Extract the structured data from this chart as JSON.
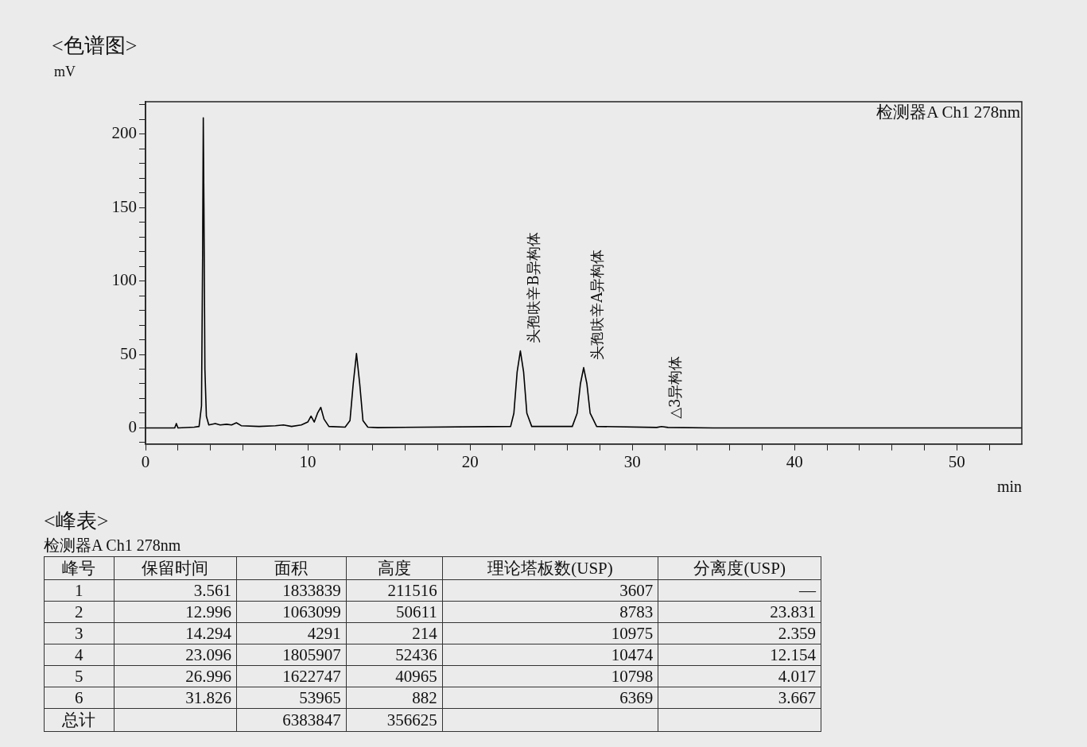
{
  "chart_data": {
    "type": "line",
    "title": "<色谱图>",
    "ylabel": "mV",
    "xlabel": "min",
    "color": "#000000",
    "marker": "none",
    "line_style": "solid",
    "grid": false,
    "legend": false,
    "xlim": [
      0,
      54
    ],
    "ylim": [
      -11,
      222
    ],
    "xticks": [
      0,
      {
        "value": 2,
        "label": null
      },
      {
        "value": 4,
        "label": null
      },
      {
        "value": 6,
        "label": null
      },
      {
        "value": 8,
        "label": null
      },
      10,
      {
        "value": 12,
        "label": null
      },
      {
        "value": 14,
        "label": null
      },
      {
        "value": 16,
        "label": null
      },
      {
        "value": 18,
        "label": null
      },
      20,
      {
        "value": 22,
        "label": null
      },
      {
        "value": 24,
        "label": null
      },
      {
        "value": 26,
        "label": null
      },
      {
        "value": 28,
        "label": null
      },
      30,
      {
        "value": 32,
        "label": null
      },
      {
        "value": 34,
        "label": null
      },
      {
        "value": 36,
        "label": null
      },
      {
        "value": 38,
        "label": null
      },
      40,
      {
        "value": 42,
        "label": null
      },
      {
        "value": 44,
        "label": null
      },
      {
        "value": 46,
        "label": null
      },
      {
        "value": 48,
        "label": null
      },
      50,
      {
        "value": 52,
        "label": null
      }
    ],
    "yticks": [
      {
        "value": -10,
        "label": null
      },
      0,
      {
        "value": 10,
        "label": null
      },
      {
        "value": 20,
        "label": null
      },
      {
        "value": 30,
        "label": null
      },
      {
        "value": 40,
        "label": null
      },
      50,
      {
        "value": 60,
        "label": null
      },
      {
        "value": 70,
        "label": null
      },
      {
        "value": 80,
        "label": null
      },
      {
        "value": 90,
        "label": null
      },
      100,
      {
        "value": 110,
        "label": null
      },
      {
        "value": 120,
        "label": null
      },
      {
        "value": 130,
        "label": null
      },
      {
        "value": 140,
        "label": null
      },
      150,
      {
        "value": 160,
        "label": null
      },
      {
        "value": 170,
        "label": null
      },
      {
        "value": 180,
        "label": null
      },
      {
        "value": 190,
        "label": null
      },
      200,
      {
        "value": 210,
        "label": null
      },
      {
        "value": 220,
        "label": null
      }
    ],
    "x": [
      0,
      1.8,
      1.9,
      2.0,
      3.0,
      3.3,
      3.45,
      3.52,
      3.56,
      3.6,
      3.66,
      3.75,
      3.9,
      4.3,
      4.6,
      5.0,
      5.3,
      5.6,
      5.9,
      7.0,
      8.0,
      8.5,
      9.0,
      9.6,
      10.0,
      10.2,
      10.4,
      10.6,
      10.8,
      11.0,
      11.3,
      12.3,
      12.6,
      12.8,
      13.0,
      13.2,
      13.4,
      13.7,
      14.3,
      22.5,
      22.7,
      22.9,
      23.1,
      23.3,
      23.5,
      23.8,
      26.3,
      26.6,
      26.8,
      27.0,
      27.2,
      27.4,
      27.8,
      31.5,
      31.8,
      32.2,
      35,
      54
    ],
    "values": [
      0,
      0,
      3,
      0,
      0.5,
      1,
      15,
      120,
      211,
      150,
      40,
      8,
      2,
      3,
      2,
      2.5,
      2,
      3.5,
      1.5,
      1,
      1.5,
      2,
      1,
      2,
      4,
      8,
      4,
      10,
      14,
      6,
      1,
      0.5,
      5,
      30,
      50.6,
      30,
      5,
      0.5,
      0.2,
      1,
      10,
      38,
      52.4,
      38,
      10,
      1,
      1,
      10,
      30,
      41,
      30,
      10,
      1,
      0.3,
      0.9,
      0.3,
      0,
      0
    ],
    "annotations": [
      "检测器A Ch1 278nm",
      {
        "text": "头孢呋辛B异构体",
        "x": 23.096,
        "y": 52.436
      },
      {
        "text": "头孢呋辛A异构体",
        "x": 26.996,
        "y": 40.965
      },
      {
        "text": "△3异构体",
        "x": 31.826,
        "y": 0.882
      },
      "<峰表>",
      "检测器A Ch1 278nm",
      "峰号",
      "保留时间",
      "面积",
      "高度",
      "理论塔板数(USP)",
      "分离度(USP)",
      "1",
      "3.561",
      "1833839",
      "211516",
      "3607",
      "—",
      "2",
      "12.996",
      "1063099",
      "50611",
      "8783",
      "23.831",
      "3",
      "14.294",
      "4291",
      "214",
      "10975",
      "2.359",
      "4",
      "23.096",
      "1805907",
      "52436",
      "10474",
      "12.154",
      "5",
      "26.996",
      "1622747",
      "40965",
      "10798",
      "4.017",
      "6",
      "31.826",
      "53965",
      "882",
      "6369",
      "3.667",
      "总计",
      null,
      "6383847",
      "356625",
      null,
      null
    ]
  }
}
